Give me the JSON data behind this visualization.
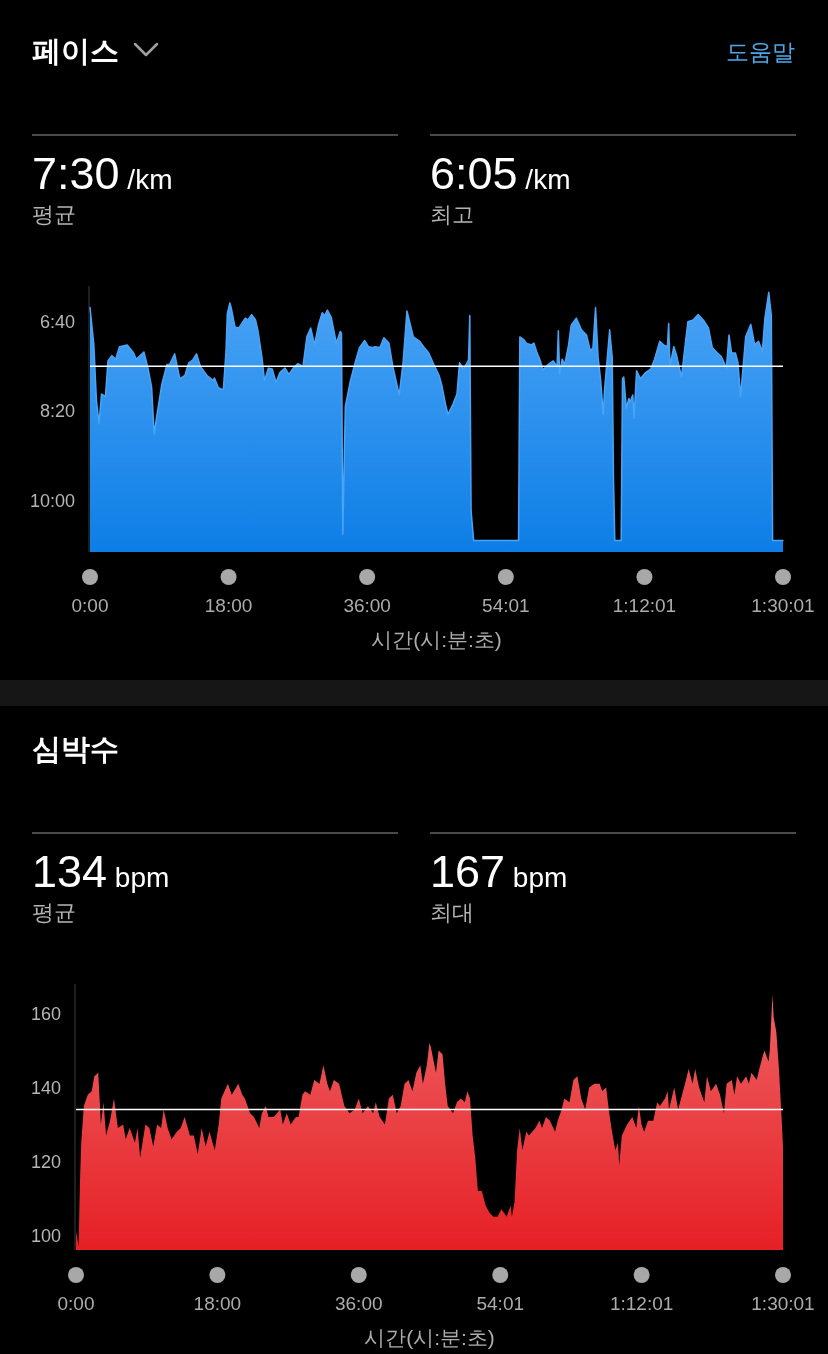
{
  "chart_data": [
    {
      "type": "line",
      "title": "페이스",
      "xlabel": "시간(시:분:초)",
      "annotations": [
        "도움말",
        "7:30 /km",
        "평균",
        "6:05 /km",
        "최고"
      ],
      "xlim": [
        0,
        5401
      ],
      "xticks": [
        {
          "value": 0,
          "label": "0:00"
        },
        {
          "value": 1080,
          "label": "18:00"
        },
        {
          "value": 2160,
          "label": "36:00"
        },
        {
          "value": 3241,
          "label": "54:01"
        },
        {
          "value": 4321,
          "label": "1:12:01"
        },
        {
          "value": 5401,
          "label": "1:30:01"
        }
      ],
      "ylim": [
        658,
        360
      ],
      "yticks": [
        {
          "value": 400,
          "label": "6:40"
        },
        {
          "value": 500,
          "label": "8:20"
        },
        {
          "value": 600,
          "label": "10:00"
        }
      ],
      "ref_lines": [
        {
          "axis": "y",
          "value": 450,
          "color": "#ffffff"
        }
      ],
      "x": [
        0,
        30,
        50,
        70,
        90,
        120,
        140,
        170,
        200,
        230,
        290,
        340,
        360,
        420,
        450,
        480,
        500,
        520,
        560,
        600,
        620,
        660,
        680,
        700,
        740,
        770,
        800,
        830,
        860,
        910,
        960,
        970,
        1000,
        1030,
        1040,
        1060,
        1070,
        1090,
        1100,
        1130,
        1160,
        1210,
        1230,
        1260,
        1290,
        1310,
        1340,
        1360,
        1390,
        1420,
        1450,
        1480,
        1520,
        1550,
        1590,
        1620,
        1660,
        1690,
        1720,
        1750,
        1780,
        1810,
        1830,
        1850,
        1880,
        1920,
        1950,
        1960,
        1970,
        1990,
        2030,
        2070,
        2100,
        2140,
        2170,
        2200,
        2220,
        2260,
        2290,
        2330,
        2360,
        2410,
        2440,
        2470,
        2520,
        2570,
        2600,
        2640,
        2680,
        2720,
        2740,
        2770,
        2790,
        2830,
        2860,
        2880,
        2910,
        2950,
        2960,
        2970,
        2990,
        3340,
        3350,
        3380,
        3400,
        3440,
        3460,
        3480,
        3510,
        3530,
        3570,
        3610,
        3640,
        3650,
        3660,
        3680,
        3700,
        3730,
        3750,
        3790,
        3830,
        3870,
        3900,
        3920,
        3940,
        3960,
        3980,
        4000,
        4010,
        4050,
        4070,
        4080,
        4090,
        4140,
        4150,
        4160,
        4180,
        4200,
        4210,
        4230,
        4240,
        4260,
        4290,
        4330,
        4370,
        4400,
        4440,
        4470,
        4500,
        4510,
        4520,
        4550,
        4570,
        4610,
        4640,
        4660,
        4700,
        4740,
        4780,
        4820,
        4850,
        4890,
        4920,
        4960,
        4980,
        5000,
        5030,
        5050,
        5070,
        5090,
        5110,
        5150,
        5180,
        5210,
        5240,
        5260,
        5290,
        5310,
        5320,
        5401
      ],
      "series": [
        {
          "color": "#4aa3f5",
          "values": [
            384,
            426,
            488,
            514,
            481,
            484,
            444,
            438,
            442,
            428,
            426,
            435,
            442,
            434,
            451,
            473,
            526,
            506,
            470,
            448,
            448,
            436,
            450,
            464,
            460,
            446,
            443,
            436,
            450,
            460,
            466,
            463,
            474,
            476,
            475,
            433,
            391,
            379,
            384,
            406,
            407,
            396,
            398,
            392,
            398,
            411,
            440,
            466,
            452,
            453,
            468,
            457,
            452,
            459,
            451,
            447,
            450,
            417,
            407,
            426,
            404,
            390,
            393,
            387,
            395,
            424,
            411,
            413,
            638,
            495,
            466,
            444,
            429,
            421,
            428,
            429,
            428,
            429,
            418,
            424,
            450,
            482,
            446,
            388,
            417,
            422,
            428,
            435,
            448,
            460,
            470,
            492,
            504,
            492,
            481,
            446,
            453,
            443,
            393,
            612,
            645,
            645,
            417,
            420,
            424,
            426,
            424,
            433,
            444,
            454,
            448,
            444,
            450,
            410,
            459,
            442,
            448,
            426,
            404,
            396,
            409,
            415,
            433,
            429,
            384,
            440,
            466,
            504,
            477,
            409,
            440,
            576,
            645,
            645,
            464,
            462,
            497,
            486,
            490,
            482,
            508,
            455,
            464,
            457,
            453,
            442,
            422,
            426,
            428,
            402,
            450,
            428,
            437,
            462,
            424,
            400,
            398,
            392,
            398,
            407,
            429,
            435,
            439,
            452,
            415,
            435,
            435,
            446,
            484,
            451,
            417,
            403,
            426,
            422,
            433,
            396,
            367,
            393,
            645,
            645
          ],
          "lower": [
            384,
            426,
            488,
            514,
            481,
            484,
            444,
            438,
            442,
            428,
            426,
            435,
            442,
            434,
            451,
            473,
            526,
            506,
            470,
            448,
            448,
            436,
            450,
            464,
            460,
            446,
            443,
            436,
            450,
            460,
            466,
            463,
            474,
            476,
            475,
            433,
            391,
            379,
            384,
            406,
            407,
            396,
            398,
            392,
            398,
            411,
            440,
            466,
            452,
            453,
            468,
            457,
            452,
            459,
            451,
            447,
            450,
            417,
            407,
            426,
            404,
            390,
            393,
            387,
            395,
            424,
            411,
            413,
            638,
            495,
            466,
            444,
            429,
            421,
            428,
            429,
            428,
            429,
            418,
            424,
            450,
            482,
            446,
            388,
            417,
            422,
            428,
            435,
            448,
            460,
            470,
            492,
            504,
            492,
            481,
            446,
            453,
            443,
            393,
            612,
            645,
            645,
            417,
            420,
            424,
            426,
            424,
            433,
            444,
            454,
            448,
            444,
            450,
            410,
            459,
            442,
            448,
            426,
            404,
            396,
            409,
            415,
            433,
            429,
            384,
            440,
            466,
            504,
            477,
            409,
            440,
            576,
            645,
            645,
            464,
            462,
            497,
            486,
            490,
            482,
            508,
            455,
            464,
            457,
            453,
            442,
            422,
            426,
            428,
            402,
            450,
            428,
            437,
            462,
            424,
            400,
            398,
            392,
            398,
            407,
            429,
            435,
            439,
            452,
            415,
            435,
            435,
            446,
            484,
            451,
            417,
            403,
            426,
            422,
            433,
            396,
            367,
            393,
            645,
            645
          ],
          "upper": [
            658,
            658,
            658,
            658,
            658,
            658,
            658,
            658,
            658,
            658,
            658,
            658,
            658,
            658,
            658,
            658,
            658,
            658,
            658,
            658,
            658,
            658,
            658,
            658,
            658,
            658,
            658,
            658,
            658,
            658,
            658,
            658,
            658,
            658,
            658,
            658,
            658,
            658,
            658,
            658,
            658,
            658,
            658,
            658,
            658,
            658,
            658,
            658,
            658,
            658,
            658,
            658,
            658,
            658,
            658,
            658,
            658,
            658,
            658,
            658,
            658,
            658,
            658,
            658,
            658,
            658,
            658,
            658,
            658,
            658,
            658,
            658,
            658,
            658,
            658,
            658,
            658,
            658,
            658,
            658,
            658,
            658,
            658,
            658,
            658,
            658,
            658,
            658,
            658,
            658,
            658,
            658,
            658,
            658,
            658,
            658,
            658,
            658,
            658,
            658,
            658,
            658,
            658,
            658,
            658,
            658,
            658,
            658,
            658,
            658,
            658,
            658,
            658,
            658,
            658,
            658,
            658,
            658,
            658,
            658,
            658,
            658,
            658,
            658,
            658,
            658,
            658,
            658,
            658,
            658,
            658,
            658,
            658,
            658,
            658,
            658,
            658,
            658,
            658,
            658,
            658,
            658,
            658,
            658,
            658,
            658,
            658,
            658,
            658,
            658,
            658,
            658,
            658,
            658,
            658,
            658,
            658,
            658,
            658,
            658,
            658,
            658,
            658,
            658,
            658,
            658,
            658,
            658,
            658,
            658,
            658,
            658,
            658,
            658,
            658,
            658,
            658,
            658,
            658,
            658
          ]
        }
      ]
    },
    {
      "type": "area",
      "title": "심박수",
      "xlabel": "시간(시:분:초)",
      "annotations": [
        "134 bpm",
        "평균",
        "167 bpm",
        "최대"
      ],
      "color": "#ea4044",
      "xlim": [
        0,
        5401
      ],
      "xticks": [
        {
          "value": 0,
          "label": "0:00"
        },
        {
          "value": 1080,
          "label": "18:00"
        },
        {
          "value": 2160,
          "label": "36:00"
        },
        {
          "value": 3241,
          "label": "54:01"
        },
        {
          "value": 4321,
          "label": "1:12:01"
        },
        {
          "value": 5401,
          "label": "1:30:01"
        }
      ],
      "ylim": [
        96,
        168
      ],
      "yticks": [
        100,
        120,
        140,
        160
      ],
      "ref_lines": [
        {
          "axis": "y",
          "value": 134,
          "color": "#ffffff"
        }
      ],
      "x": [
        0,
        20,
        30,
        40,
        60,
        90,
        120,
        140,
        170,
        190,
        210,
        230,
        260,
        290,
        320,
        360,
        380,
        410,
        450,
        470,
        490,
        530,
        560,
        590,
        620,
        650,
        670,
        700,
        730,
        770,
        800,
        830,
        870,
        900,
        930,
        960,
        990,
        1020,
        1060,
        1090,
        1110,
        1160,
        1190,
        1240,
        1270,
        1290,
        1330,
        1360,
        1400,
        1420,
        1450,
        1470,
        1510,
        1560,
        1580,
        1610,
        1640,
        1680,
        1700,
        1730,
        1750,
        1790,
        1820,
        1860,
        1890,
        1920,
        1940,
        1970,
        2010,
        2050,
        2090,
        2130,
        2160,
        2190,
        2230,
        2270,
        2290,
        2320,
        2360,
        2390,
        2420,
        2450,
        2480,
        2510,
        2540,
        2570,
        2600,
        2630,
        2650,
        2680,
        2700,
        2710,
        2750,
        2770,
        2800,
        2820,
        2840,
        2880,
        2910,
        2940,
        2970,
        2990,
        3010,
        3030,
        3050,
        3070,
        3100,
        3130,
        3160,
        3190,
        3220,
        3250,
        3290,
        3320,
        3330,
        3350,
        3370,
        3390,
        3410,
        3440,
        3460,
        3510,
        3540,
        3560,
        3590,
        3620,
        3660,
        3680,
        3710,
        3730,
        3770,
        3800,
        3830,
        3860,
        3890,
        3920,
        3960,
        4000,
        4020,
        4050,
        4070,
        4090,
        4120,
        4140,
        4150,
        4170,
        4210,
        4250,
        4280,
        4300,
        4320,
        4340,
        4370,
        4410,
        4440,
        4460,
        4500,
        4520,
        4530,
        4570,
        4600,
        4630,
        4660,
        4680,
        4710,
        4730,
        4760,
        4800,
        4820,
        4850,
        4890,
        4920,
        4950,
        4970,
        5010,
        5030,
        5050,
        5080,
        5120,
        5140,
        5160,
        5200,
        5220,
        5250,
        5260,
        5290,
        5300,
        5320,
        5330,
        5350,
        5370,
        5390,
        5401
      ],
      "values": [
        101,
        97,
        114,
        125,
        135,
        138,
        139,
        143,
        144,
        130,
        136,
        127,
        131,
        137,
        129,
        130,
        126,
        129,
        125,
        129,
        121,
        130,
        129,
        124,
        130,
        129,
        134,
        129,
        126,
        128,
        129,
        132,
        127,
        127,
        122,
        129,
        124,
        128,
        123,
        130,
        137,
        141,
        138,
        141,
        138,
        137,
        133,
        132,
        129,
        133,
        135,
        132,
        132,
        134,
        130,
        133,
        130,
        132,
        132,
        138,
        139,
        138,
        142,
        141,
        146,
        141,
        139,
        142,
        141,
        135,
        133,
        134,
        137,
        133,
        135,
        133,
        136,
        132,
        130,
        137,
        138,
        133,
        135,
        141,
        142,
        139,
        144,
        146,
        141,
        146,
        152,
        151,
        144,
        150,
        149,
        141,
        135,
        133,
        136,
        137,
        136,
        139,
        137,
        127,
        121,
        112,
        112,
        108,
        106,
        105,
        105,
        107,
        105,
        108,
        105,
        109,
        123,
        129,
        123,
        128,
        127,
        129,
        131,
        129,
        132,
        131,
        128,
        131,
        134,
        137,
        136,
        142,
        143,
        137,
        134,
        140,
        141,
        141,
        139,
        140,
        134,
        129,
        123,
        125,
        119,
        127,
        130,
        132,
        129,
        135,
        130,
        128,
        131,
        131,
        136,
        135,
        137,
        139,
        134,
        140,
        134,
        138,
        142,
        145,
        141,
        145,
        140,
        136,
        143,
        139,
        141,
        138,
        133,
        141,
        142,
        138,
        143,
        141,
        143,
        141,
        144,
        142,
        145,
        149,
        150,
        147,
        150,
        165,
        159,
        155,
        145,
        132,
        124
      ]
    }
  ]
}
